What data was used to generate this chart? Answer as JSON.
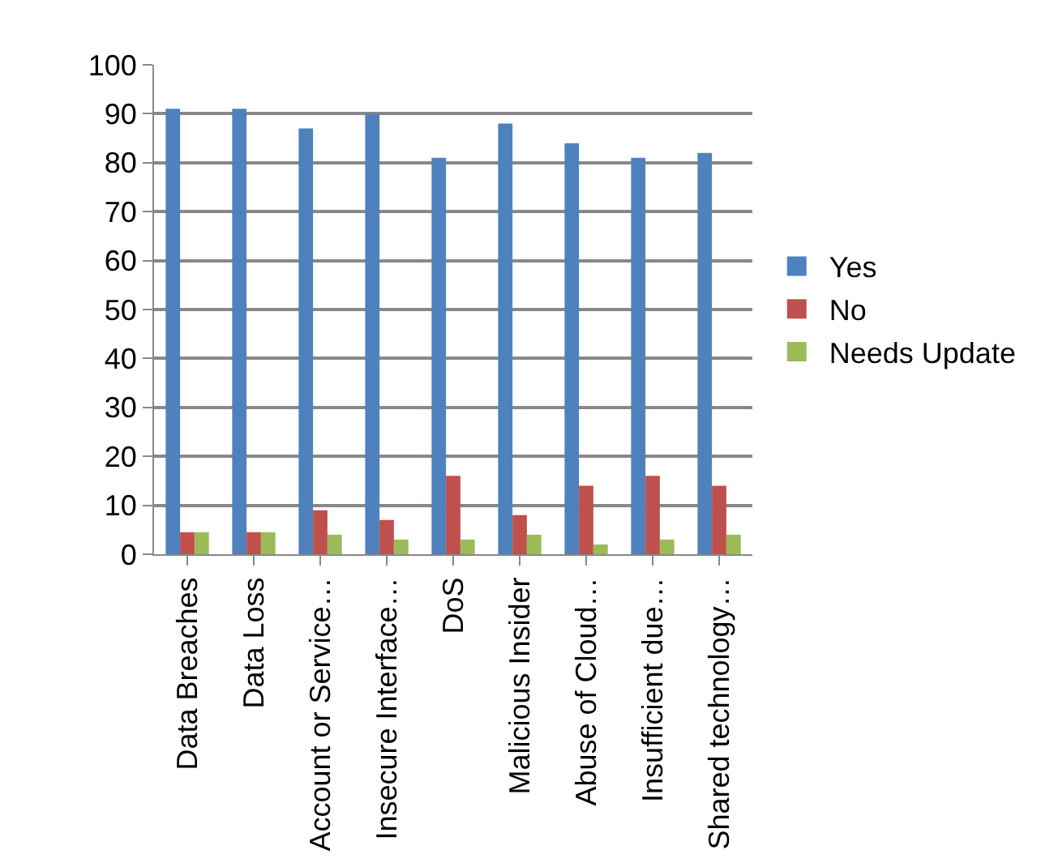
{
  "chart_data": {
    "type": "bar",
    "categories": [
      "Data Breaches",
      "Data Loss",
      "Account or Service…",
      "Insecure Interface…",
      "DoS",
      "Malicious Insider",
      "Abuse of Cloud…",
      "Insufficient due…",
      "Shared technology…"
    ],
    "series": [
      {
        "name": "Yes",
        "color": "#4f81bd",
        "values": [
          91,
          91,
          87,
          90,
          81,
          88,
          84,
          81,
          82
        ]
      },
      {
        "name": "No",
        "color": "#c0504d",
        "values": [
          4.5,
          4.5,
          9,
          7,
          16,
          8,
          14,
          16,
          14
        ]
      },
      {
        "name": "Needs Update",
        "color": "#9bbb59",
        "values": [
          4.5,
          4.5,
          4,
          3,
          3,
          4,
          2,
          3,
          4
        ]
      }
    ],
    "ylim": [
      0,
      100
    ],
    "yticks": [
      0,
      10,
      20,
      30,
      40,
      50,
      60,
      70,
      80,
      90,
      100
    ],
    "grid": "y",
    "legend": "right"
  }
}
